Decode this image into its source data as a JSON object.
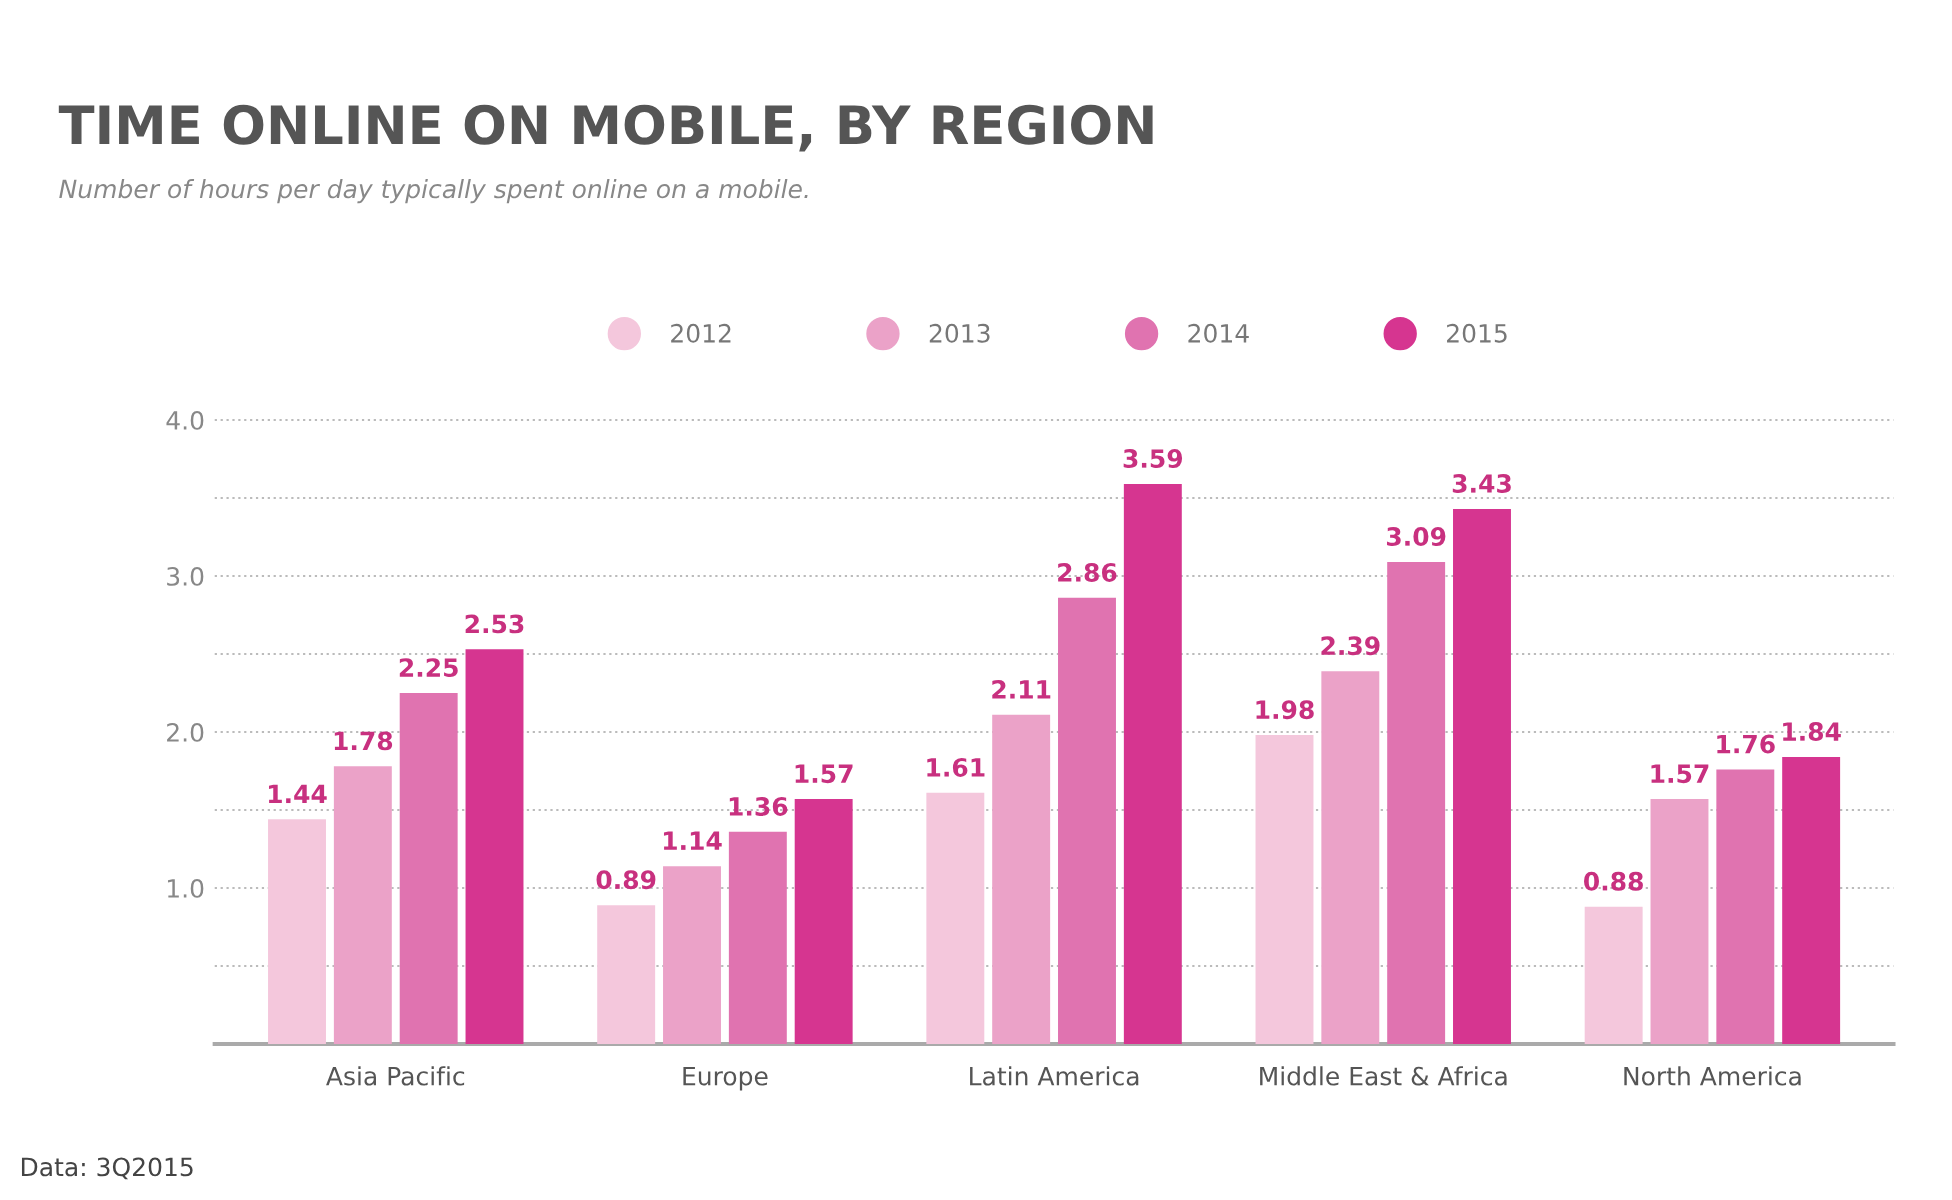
{
  "chart_data": {
    "type": "bar",
    "title": "TIME ONLINE ON MOBILE, BY REGION",
    "subtitle": "Number of hours per day typically spent online on a mobile.",
    "categories": [
      "Asia Pacific",
      "Europe",
      "Latin America",
      "Middle East & Africa",
      "North America"
    ],
    "series": [
      {
        "name": "2012",
        "color": "#f4c7dc",
        "values": [
          1.44,
          0.89,
          1.61,
          1.98,
          0.88
        ]
      },
      {
        "name": "2013",
        "color": "#eba2c8",
        "values": [
          1.78,
          1.14,
          2.11,
          2.39,
          1.57
        ]
      },
      {
        "name": "2014",
        "color": "#e073b0",
        "values": [
          2.25,
          1.36,
          2.86,
          3.09,
          1.76
        ]
      },
      {
        "name": "2015",
        "color": "#d63590",
        "values": [
          2.53,
          1.57,
          3.59,
          3.43,
          1.84
        ]
      }
    ],
    "ylim": [
      0,
      4.0
    ],
    "yticks": [
      {
        "value": 0.5,
        "label": null
      },
      {
        "value": 1.0,
        "label": "1.0"
      },
      {
        "value": 1.5,
        "label": null
      },
      {
        "value": 2.0,
        "label": "2.0"
      },
      {
        "value": 2.5,
        "label": null
      },
      {
        "value": 3.0,
        "label": "3.0"
      },
      {
        "value": 3.5,
        "label": null
      },
      {
        "value": 4.0,
        "label": "4.0"
      }
    ],
    "grid": "y",
    "legend": "top",
    "data_labels": true,
    "annotations": [
      "Data: 3Q2015"
    ]
  }
}
